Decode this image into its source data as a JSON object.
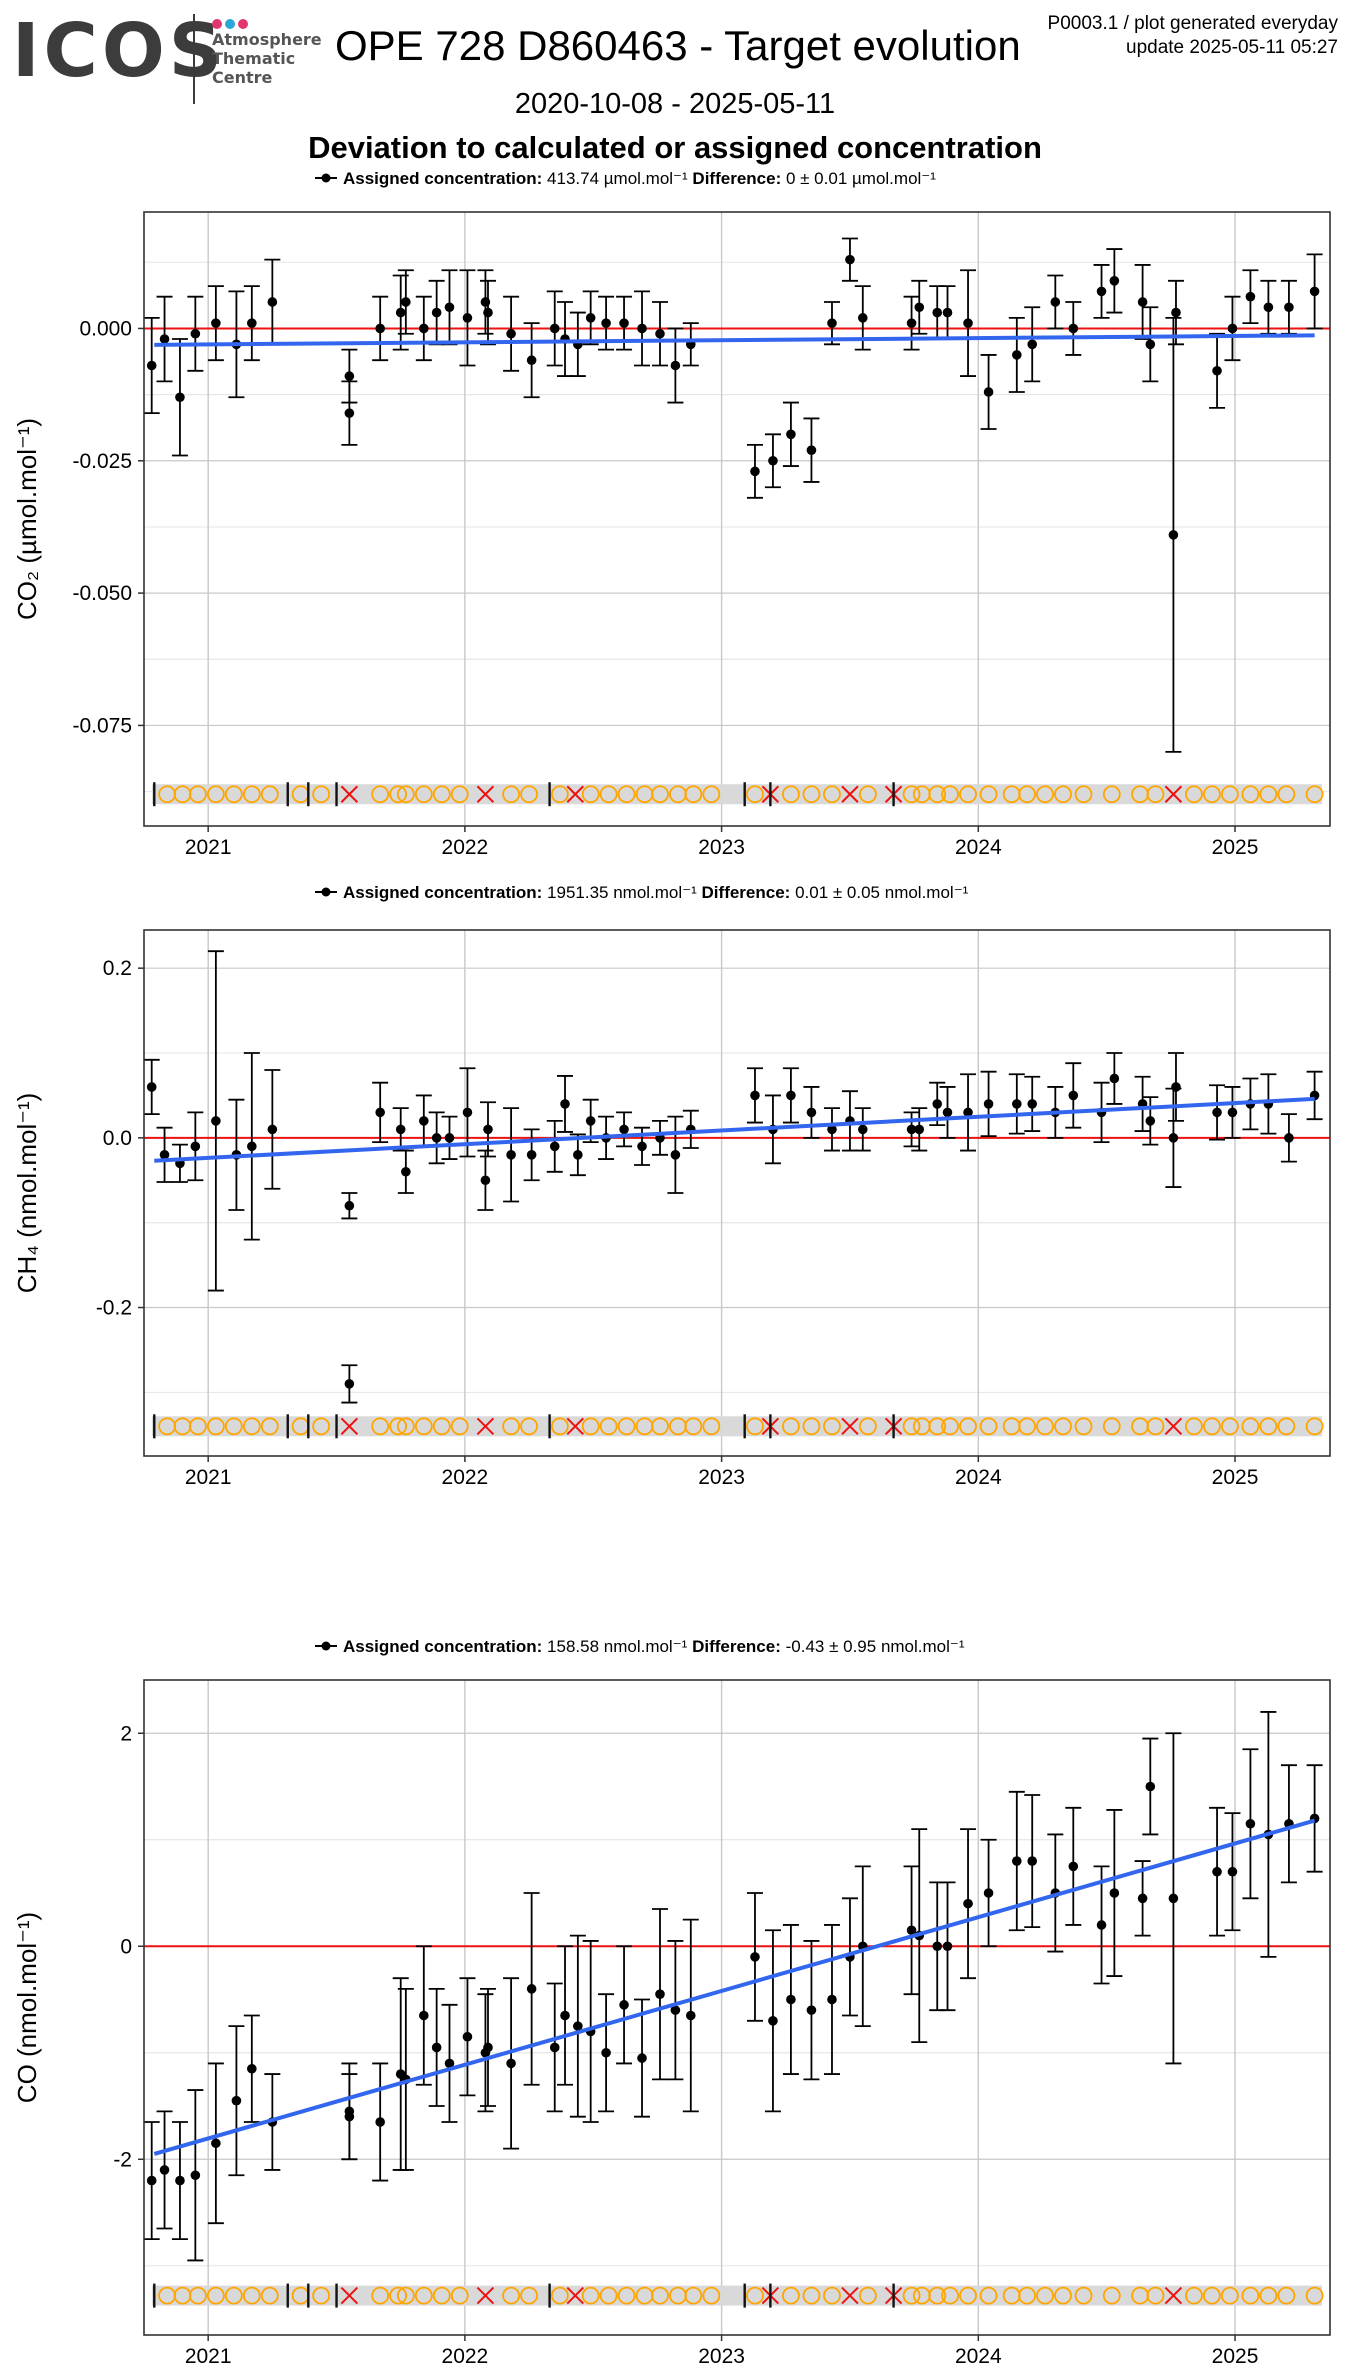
{
  "header": {
    "logo_word": "ICOS",
    "logo_lines": [
      "Atmosphere",
      "Thematic",
      "Centre"
    ],
    "logo_dot_colors": [
      "#e0366e",
      "#2aa7d8",
      "#e0366e"
    ],
    "title": "OPE 728 D860463 - Target evolution",
    "plot_id": "P0003.1 / plot generated everyday",
    "update": "update  2025-05-11 05:27",
    "date_range": "2020-10-08 - 2025-05-11",
    "subtitle": "Deviation to calculated or assigned concentration"
  },
  "colors": {
    "points": "#000000",
    "trend": "#3366ee",
    "zero_line": "#ee1111",
    "flag_band": "#d9d9d9",
    "flag_circle": "#ffa500",
    "flag_cross": "#ee1111",
    "grid": "#e6e6e6",
    "grid_major": "#c8c8c8"
  },
  "chart_data": [
    {
      "type": "scatter",
      "gas": "CO2",
      "ylabel": "CO₂ (µmol.mol⁻¹)",
      "legend": {
        "assigned_label": "Assigned concentration:",
        "assigned_value": "413.74 µmol.mol⁻¹",
        "diff_label": "Difference:",
        "diff_value": "0 ± 0.01 µmol.mol⁻¹"
      },
      "xlim": [
        2020.75,
        2025.37
      ],
      "ylim": [
        -0.094,
        0.022
      ],
      "xticks": [
        2021,
        2022,
        2023,
        2024,
        2025
      ],
      "yticks": [
        0.0,
        -0.025,
        -0.05,
        -0.075
      ],
      "ytick_labels": [
        "0.000",
        "-0.025",
        "-0.050",
        "-0.075"
      ],
      "flag_y": -0.088,
      "trend": {
        "x": [
          2020.79,
          2025.31
        ],
        "y": [
          -0.0031,
          -0.0013
        ]
      },
      "points": [
        [
          2020.78,
          -0.007,
          0.009
        ],
        [
          2020.83,
          -0.002,
          0.008
        ],
        [
          2020.89,
          -0.013,
          0.011
        ],
        [
          2020.95,
          -0.001,
          0.007
        ],
        [
          2021.03,
          0.001,
          0.007
        ],
        [
          2021.11,
          -0.003,
          0.01
        ],
        [
          2021.17,
          0.001,
          0.007
        ],
        [
          2021.25,
          0.005,
          0.008
        ],
        [
          2021.55,
          -0.009,
          0.005
        ],
        [
          2021.55,
          -0.016,
          0.006
        ],
        [
          2021.67,
          0.0,
          0.006
        ],
        [
          2021.75,
          0.003,
          0.007
        ],
        [
          2021.77,
          0.005,
          0.006
        ],
        [
          2021.84,
          0.0,
          0.006
        ],
        [
          2021.89,
          0.003,
          0.006
        ],
        [
          2021.94,
          0.004,
          0.007
        ],
        [
          2022.01,
          0.002,
          0.009
        ],
        [
          2022.08,
          0.005,
          0.006
        ],
        [
          2022.09,
          0.003,
          0.006
        ],
        [
          2022.18,
          -0.001,
          0.007
        ],
        [
          2022.26,
          -0.006,
          0.007
        ],
        [
          2022.35,
          0.0,
          0.007
        ],
        [
          2022.39,
          -0.002,
          0.007
        ],
        [
          2022.44,
          -0.003,
          0.006
        ],
        [
          2022.49,
          0.002,
          0.005
        ],
        [
          2022.55,
          0.001,
          0.005
        ],
        [
          2022.62,
          0.001,
          0.005
        ],
        [
          2022.69,
          0.0,
          0.007
        ],
        [
          2022.76,
          -0.001,
          0.006
        ],
        [
          2022.82,
          -0.007,
          0.007
        ],
        [
          2022.88,
          -0.003,
          0.004
        ],
        [
          2023.13,
          -0.027,
          0.005
        ],
        [
          2023.2,
          -0.025,
          0.005
        ],
        [
          2023.27,
          -0.02,
          0.006
        ],
        [
          2023.35,
          -0.023,
          0.006
        ],
        [
          2023.43,
          0.001,
          0.004
        ],
        [
          2023.5,
          0.013,
          0.004
        ],
        [
          2023.55,
          0.002,
          0.006
        ],
        [
          2023.74,
          0.001,
          0.005
        ],
        [
          2023.77,
          0.004,
          0.005
        ],
        [
          2023.84,
          0.003,
          0.005
        ],
        [
          2023.88,
          0.003,
          0.005
        ],
        [
          2023.96,
          0.001,
          0.01
        ],
        [
          2024.04,
          -0.012,
          0.007
        ],
        [
          2024.15,
          -0.005,
          0.007
        ],
        [
          2024.21,
          -0.003,
          0.007
        ],
        [
          2024.3,
          0.005,
          0.005
        ],
        [
          2024.37,
          0.0,
          0.005
        ],
        [
          2024.48,
          0.007,
          0.005
        ],
        [
          2024.53,
          0.009,
          0.006
        ],
        [
          2024.64,
          0.005,
          0.007
        ],
        [
          2024.67,
          -0.003,
          0.007
        ],
        [
          2024.76,
          -0.039,
          0.041
        ],
        [
          2024.77,
          0.003,
          0.006
        ],
        [
          2024.93,
          -0.008,
          0.007
        ],
        [
          2024.99,
          0.0,
          0.006
        ],
        [
          2025.06,
          0.006,
          0.005
        ],
        [
          2025.13,
          0.004,
          0.005
        ],
        [
          2025.21,
          0.004,
          0.005
        ],
        [
          2025.31,
          0.007,
          0.007
        ]
      ]
    },
    {
      "type": "scatter",
      "gas": "CH4",
      "ylabel": "CH₄ (nmol.mol⁻¹)",
      "legend": {
        "assigned_label": "Assigned concentration:",
        "assigned_value": "1951.35 nmol.mol⁻¹",
        "diff_label": "Difference:",
        "diff_value": "0.01 ± 0.05 nmol.mol⁻¹"
      },
      "xlim": [
        2020.75,
        2025.37
      ],
      "ylim": [
        -0.375,
        0.245
      ],
      "xticks": [
        2021,
        2022,
        2023,
        2024,
        2025
      ],
      "yticks": [
        0.2,
        0.0,
        -0.2
      ],
      "ytick_labels": [
        "0.2",
        "0.0",
        "-0.2"
      ],
      "flag_y": -0.34,
      "trend": {
        "x": [
          2020.79,
          2025.31
        ],
        "y": [
          -0.027,
          0.046
        ]
      },
      "points": [
        [
          2020.78,
          0.06,
          0.032
        ],
        [
          2020.83,
          -0.02,
          0.032
        ],
        [
          2020.89,
          -0.03,
          0.022
        ],
        [
          2020.95,
          -0.01,
          0.04
        ],
        [
          2021.03,
          0.02,
          0.2
        ],
        [
          2021.11,
          -0.02,
          0.065
        ],
        [
          2021.17,
          -0.01,
          0.11
        ],
        [
          2021.25,
          0.01,
          0.07
        ],
        [
          2021.55,
          -0.08,
          0.015
        ],
        [
          2021.55,
          -0.29,
          0.022
        ],
        [
          2021.67,
          0.03,
          0.035
        ],
        [
          2021.75,
          0.01,
          0.025
        ],
        [
          2021.77,
          -0.04,
          0.025
        ],
        [
          2021.84,
          0.02,
          0.03
        ],
        [
          2021.89,
          0.0,
          0.03
        ],
        [
          2021.94,
          0.0,
          0.025
        ],
        [
          2022.01,
          0.03,
          0.052
        ],
        [
          2022.08,
          -0.05,
          0.035
        ],
        [
          2022.09,
          0.01,
          0.032
        ],
        [
          2022.18,
          -0.02,
          0.055
        ],
        [
          2022.26,
          -0.02,
          0.03
        ],
        [
          2022.35,
          -0.01,
          0.03
        ],
        [
          2022.39,
          0.04,
          0.033
        ],
        [
          2022.44,
          -0.02,
          0.024
        ],
        [
          2022.49,
          0.02,
          0.025
        ],
        [
          2022.55,
          0.0,
          0.025
        ],
        [
          2022.62,
          0.01,
          0.02
        ],
        [
          2022.69,
          -0.01,
          0.022
        ],
        [
          2022.76,
          0.0,
          0.02
        ],
        [
          2022.82,
          -0.02,
          0.045
        ],
        [
          2022.88,
          0.01,
          0.022
        ],
        [
          2023.13,
          0.05,
          0.032
        ],
        [
          2023.2,
          0.01,
          0.04
        ],
        [
          2023.27,
          0.05,
          0.032
        ],
        [
          2023.35,
          0.03,
          0.03
        ],
        [
          2023.43,
          0.01,
          0.025
        ],
        [
          2023.5,
          0.02,
          0.035
        ],
        [
          2023.55,
          0.01,
          0.025
        ],
        [
          2023.74,
          0.01,
          0.02
        ],
        [
          2023.77,
          0.01,
          0.025
        ],
        [
          2023.84,
          0.04,
          0.025
        ],
        [
          2023.88,
          0.03,
          0.03
        ],
        [
          2023.96,
          0.03,
          0.045
        ],
        [
          2024.04,
          0.04,
          0.038
        ],
        [
          2024.15,
          0.04,
          0.035
        ],
        [
          2024.21,
          0.04,
          0.032
        ],
        [
          2024.3,
          0.03,
          0.03
        ],
        [
          2024.37,
          0.05,
          0.038
        ],
        [
          2024.48,
          0.03,
          0.035
        ],
        [
          2024.53,
          0.07,
          0.03
        ],
        [
          2024.64,
          0.04,
          0.032
        ],
        [
          2024.67,
          0.02,
          0.028
        ],
        [
          2024.76,
          0.0,
          0.058
        ],
        [
          2024.77,
          0.06,
          0.04
        ],
        [
          2024.93,
          0.03,
          0.032
        ],
        [
          2024.99,
          0.03,
          0.03
        ],
        [
          2025.06,
          0.04,
          0.03
        ],
        [
          2025.13,
          0.04,
          0.035
        ],
        [
          2025.21,
          0.0,
          0.028
        ],
        [
          2025.31,
          0.05,
          0.028
        ]
      ]
    },
    {
      "type": "scatter",
      "gas": "CO",
      "ylabel": "CO (nmol.mol⁻¹)",
      "legend": {
        "assigned_label": "Assigned concentration:",
        "assigned_value": "158.58 nmol.mol⁻¹",
        "diff_label": "Difference:",
        "diff_value": "-0.43 ± 0.95 nmol.mol⁻¹"
      },
      "xlim": [
        2020.75,
        2025.37
      ],
      "ylim": [
        -3.65,
        2.5
      ],
      "xticks": [
        2021,
        2022,
        2023,
        2024,
        2025
      ],
      "yticks": [
        2,
        0,
        -2
      ],
      "ytick_labels": [
        "2",
        "0",
        "-2"
      ],
      "flag_y": -3.28,
      "trend": {
        "x": [
          2020.79,
          2025.31
        ],
        "y": [
          -1.95,
          1.18
        ]
      },
      "points": [
        [
          2020.78,
          -2.2,
          0.55
        ],
        [
          2020.83,
          -2.1,
          0.55
        ],
        [
          2020.89,
          -2.2,
          0.55
        ],
        [
          2020.95,
          -2.15,
          0.8
        ],
        [
          2021.03,
          -1.85,
          0.75
        ],
        [
          2021.11,
          -1.45,
          0.7
        ],
        [
          2021.17,
          -1.15,
          0.5
        ],
        [
          2021.25,
          -1.65,
          0.45
        ],
        [
          2021.55,
          -1.55,
          0.45
        ],
        [
          2021.55,
          -1.6,
          0.4
        ],
        [
          2021.67,
          -1.65,
          0.55
        ],
        [
          2021.75,
          -1.2,
          0.9
        ],
        [
          2021.77,
          -1.25,
          0.85
        ],
        [
          2021.84,
          -0.65,
          0.65
        ],
        [
          2021.89,
          -0.95,
          0.55
        ],
        [
          2021.94,
          -1.1,
          0.55
        ],
        [
          2022.01,
          -0.85,
          0.55
        ],
        [
          2022.08,
          -1.0,
          0.55
        ],
        [
          2022.09,
          -0.95,
          0.55
        ],
        [
          2022.18,
          -1.1,
          0.8
        ],
        [
          2022.26,
          -0.4,
          0.9
        ],
        [
          2022.35,
          -0.95,
          0.6
        ],
        [
          2022.39,
          -0.65,
          0.65
        ],
        [
          2022.44,
          -0.75,
          0.85
        ],
        [
          2022.49,
          -0.8,
          0.85
        ],
        [
          2022.55,
          -1.0,
          0.55
        ],
        [
          2022.62,
          -0.55,
          0.55
        ],
        [
          2022.69,
          -1.05,
          0.55
        ],
        [
          2022.76,
          -0.45,
          0.8
        ],
        [
          2022.82,
          -0.6,
          0.65
        ],
        [
          2022.88,
          -0.65,
          0.9
        ],
        [
          2023.13,
          -0.1,
          0.6
        ],
        [
          2023.2,
          -0.7,
          0.85
        ],
        [
          2023.27,
          -0.5,
          0.7
        ],
        [
          2023.35,
          -0.6,
          0.65
        ],
        [
          2023.43,
          -0.5,
          0.7
        ],
        [
          2023.5,
          -0.1,
          0.55
        ],
        [
          2023.55,
          0.0,
          0.75
        ],
        [
          2023.74,
          0.15,
          0.6
        ],
        [
          2023.77,
          0.1,
          1.0
        ],
        [
          2023.84,
          0.0,
          0.6
        ],
        [
          2023.88,
          0.0,
          0.6
        ],
        [
          2023.96,
          0.4,
          0.7
        ],
        [
          2024.04,
          0.5,
          0.5
        ],
        [
          2024.15,
          0.8,
          0.65
        ],
        [
          2024.21,
          0.8,
          0.62
        ],
        [
          2024.3,
          0.5,
          0.55
        ],
        [
          2024.37,
          0.75,
          0.55
        ],
        [
          2024.48,
          0.2,
          0.55
        ],
        [
          2024.53,
          0.5,
          0.78
        ],
        [
          2024.64,
          0.45,
          0.35
        ],
        [
          2024.67,
          1.5,
          0.45
        ],
        [
          2024.76,
          0.45,
          1.55
        ],
        [
          2024.93,
          0.7,
          0.6
        ],
        [
          2024.99,
          0.7,
          0.55
        ],
        [
          2025.06,
          1.15,
          0.7
        ],
        [
          2025.13,
          1.05,
          1.15
        ],
        [
          2025.21,
          1.15,
          0.55
        ],
        [
          2025.31,
          1.2,
          0.5
        ]
      ]
    }
  ],
  "flag_markers": [
    [
      2020.79,
      "bar"
    ],
    [
      2020.84,
      "circle"
    ],
    [
      2020.9,
      "circle"
    ],
    [
      2020.96,
      "circle"
    ],
    [
      2021.03,
      "circle"
    ],
    [
      2021.1,
      "circle"
    ],
    [
      2021.17,
      "circle"
    ],
    [
      2021.24,
      "circle"
    ],
    [
      2021.31,
      "bar"
    ],
    [
      2021.36,
      "circle"
    ],
    [
      2021.39,
      "bar"
    ],
    [
      2021.44,
      "circle"
    ],
    [
      2021.5,
      "bar"
    ],
    [
      2021.55,
      "cross"
    ],
    [
      2021.67,
      "circle"
    ],
    [
      2021.74,
      "circle"
    ],
    [
      2021.77,
      "circle"
    ],
    [
      2021.84,
      "circle"
    ],
    [
      2021.91,
      "circle"
    ],
    [
      2021.98,
      "circle"
    ],
    [
      2022.08,
      "cross"
    ],
    [
      2022.18,
      "circle"
    ],
    [
      2022.25,
      "circle"
    ],
    [
      2022.33,
      "bar"
    ],
    [
      2022.37,
      "circle"
    ],
    [
      2022.43,
      "cross"
    ],
    [
      2022.49,
      "circle"
    ],
    [
      2022.56,
      "circle"
    ],
    [
      2022.63,
      "circle"
    ],
    [
      2022.7,
      "circle"
    ],
    [
      2022.76,
      "circle"
    ],
    [
      2022.83,
      "circle"
    ],
    [
      2022.89,
      "circle"
    ],
    [
      2022.96,
      "circle"
    ],
    [
      2023.09,
      "bar"
    ],
    [
      2023.13,
      "circle"
    ],
    [
      2023.19,
      "cross"
    ],
    [
      2023.19,
      "bar"
    ],
    [
      2023.27,
      "circle"
    ],
    [
      2023.35,
      "circle"
    ],
    [
      2023.43,
      "circle"
    ],
    [
      2023.5,
      "cross"
    ],
    [
      2023.57,
      "circle"
    ],
    [
      2023.67,
      "cross"
    ],
    [
      2023.67,
      "bar"
    ],
    [
      2023.74,
      "circle"
    ],
    [
      2023.78,
      "circle"
    ],
    [
      2023.84,
      "circle"
    ],
    [
      2023.89,
      "circle"
    ],
    [
      2023.96,
      "circle"
    ],
    [
      2024.04,
      "circle"
    ],
    [
      2024.13,
      "circle"
    ],
    [
      2024.19,
      "circle"
    ],
    [
      2024.26,
      "circle"
    ],
    [
      2024.33,
      "circle"
    ],
    [
      2024.41,
      "circle"
    ],
    [
      2024.52,
      "circle"
    ],
    [
      2024.63,
      "circle"
    ],
    [
      2024.69,
      "circle"
    ],
    [
      2024.76,
      "cross"
    ],
    [
      2024.84,
      "circle"
    ],
    [
      2024.91,
      "circle"
    ],
    [
      2024.98,
      "circle"
    ],
    [
      2025.06,
      "circle"
    ],
    [
      2025.13,
      "circle"
    ],
    [
      2025.2,
      "circle"
    ],
    [
      2025.31,
      "circle"
    ]
  ]
}
